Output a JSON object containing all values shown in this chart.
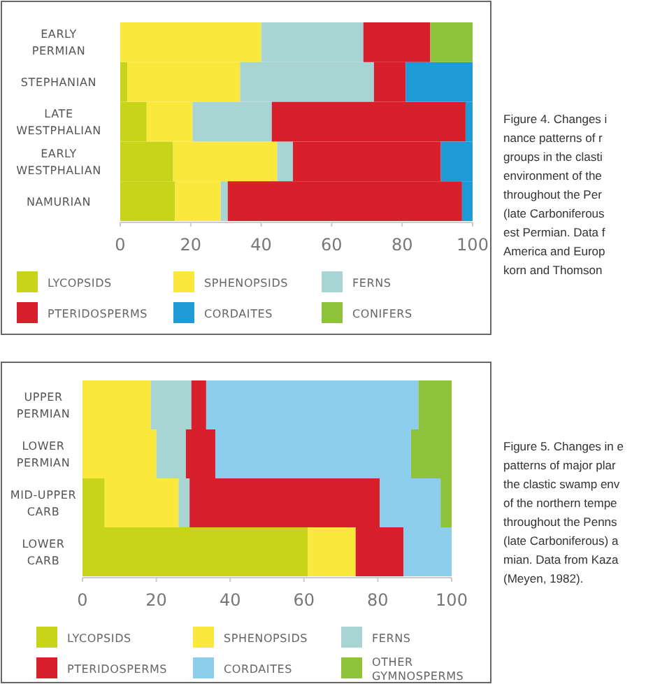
{
  "chart_data": [
    {
      "type": "bar",
      "orientation": "horizontal",
      "stacked": true,
      "legend": "bottom",
      "categories": [
        "EARLY PERMIAN",
        "STEPHANIAN",
        "LATE WESTPHALIAN",
        "EARLY WESTPHALIAN",
        "NAMURIAN"
      ],
      "xlim": [
        0,
        100
      ],
      "xticks": [
        0,
        20,
        40,
        60,
        80,
        100
      ],
      "series": [
        {
          "name": "LYCOPSIDS",
          "color": "#c8d41a",
          "values": [
            0,
            2,
            7.5,
            15,
            15.5
          ]
        },
        {
          "name": "SPHENOPSIDS",
          "color": "#fbe83c",
          "values": [
            40,
            32,
            13,
            29.5,
            13
          ]
        },
        {
          "name": "FERNS",
          "color": "#a8d4d4",
          "values": [
            29,
            38,
            22.5,
            4.5,
            2
          ]
        },
        {
          "name": "PTERIDOSPERMS",
          "color": "#d81f2c",
          "values": [
            19,
            9,
            55,
            42,
            66.5
          ]
        },
        {
          "name": "CORDAITES",
          "color": "#1e9ad6",
          "values": [
            0,
            19,
            2,
            9,
            3
          ]
        },
        {
          "name": "CONIFERS",
          "color": "#8fc23b",
          "values": [
            12,
            0,
            0,
            0,
            0
          ]
        }
      ],
      "annotations": [
        "Figure 4. Changes i",
        "nance patterns of r",
        "groups in the clasti",
        "environment of the",
        "throughout the Per",
        "(late Carboniferous",
        "est Permian. Data f",
        "America and Europ",
        "korn and Thomson"
      ]
    },
    {
      "type": "bar",
      "orientation": "horizontal",
      "stacked": true,
      "legend": "bottom",
      "categories": [
        "UPPER PERMIAN",
        "LOWER PERMIAN",
        "MID-UPPER CARB",
        "LOWER CARB"
      ],
      "xlim": [
        0,
        100
      ],
      "xticks": [
        0,
        20,
        40,
        60,
        80,
        100
      ],
      "series": [
        {
          "name": "LYCOPSIDS",
          "color": "#c8d41a",
          "values": [
            0,
            0,
            6,
            61
          ]
        },
        {
          "name": "SPHENOPSIDS",
          "color": "#fbe83c",
          "values": [
            18.5,
            20,
            20,
            13
          ]
        },
        {
          "name": "FERNS",
          "color": "#a8d4d4",
          "values": [
            11,
            8,
            3,
            0
          ]
        },
        {
          "name": "PTERIDOSPERMS",
          "color": "#d81f2c",
          "values": [
            4,
            8,
            51.5,
            13
          ]
        },
        {
          "name": "CORDAITES",
          "color": "#8ccdeb",
          "values": [
            57.5,
            53,
            16.5,
            13
          ]
        },
        {
          "name": "OTHER GYMNOSPERMS",
          "color": "#8fc23b",
          "values": [
            9,
            11,
            3,
            0
          ]
        }
      ],
      "annotations": [
        "Figure 5. Changes in e",
        "patterns of major plar",
        "the clastic swamp env",
        "of the northern tempe",
        "throughout the Penns",
        "(late Carboniferous) a",
        "mian. Data from Kaza",
        "(Meyen, 1982)."
      ]
    }
  ]
}
